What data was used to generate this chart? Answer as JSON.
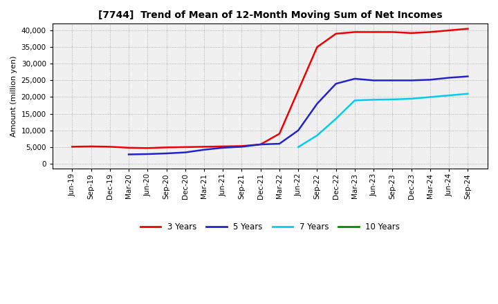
{
  "title": "[7744]  Trend of Mean of 12-Month Moving Sum of Net Incomes",
  "ylabel": "Amount (million yen)",
  "background_color": "#ffffff",
  "plot_bg_color": "#f0f0f0",
  "grid_color": "#999999",
  "x_labels": [
    "Jun-19",
    "Sep-19",
    "Dec-19",
    "Mar-20",
    "Jun-20",
    "Sep-20",
    "Dec-20",
    "Mar-21",
    "Jun-21",
    "Sep-21",
    "Dec-21",
    "Mar-22",
    "Jun-22",
    "Sep-22",
    "Dec-22",
    "Mar-23",
    "Jun-23",
    "Sep-23",
    "Dec-23",
    "Mar-24",
    "Jun-24",
    "Sep-24"
  ],
  "series": {
    "3 Years": {
      "color": "#ee0000",
      "data": [
        5100,
        5200,
        5100,
        4800,
        4700,
        4900,
        5000,
        5100,
        5200,
        5300,
        5800,
        9000,
        22000,
        35000,
        39000,
        39500,
        39500,
        39500,
        39200,
        39500,
        40000,
        40500
      ]
    },
    "5 Years": {
      "color": "#2222cc",
      "data": [
        null,
        null,
        null,
        2800,
        2900,
        3100,
        3400,
        4200,
        4800,
        5100,
        5800,
        6000,
        10000,
        18000,
        24000,
        25500,
        25000,
        25000,
        25000,
        25200,
        25800,
        26200
      ]
    },
    "7 Years": {
      "color": "#00ccee",
      "data": [
        null,
        null,
        null,
        null,
        null,
        null,
        null,
        null,
        null,
        null,
        null,
        null,
        5000,
        8500,
        13500,
        19000,
        19200,
        19300,
        19500,
        20000,
        20500,
        21000
      ]
    },
    "10 Years": {
      "color": "#008800",
      "data": [
        null,
        null,
        null,
        null,
        null,
        null,
        null,
        null,
        null,
        null,
        null,
        null,
        null,
        null,
        null,
        null,
        null,
        null,
        null,
        null,
        null,
        null
      ]
    }
  },
  "ylim": [
    -1500,
    42000
  ],
  "yticks": [
    0,
    5000,
    10000,
    15000,
    20000,
    25000,
    30000,
    35000,
    40000
  ],
  "legend_order": [
    "3 Years",
    "5 Years",
    "7 Years",
    "10 Years"
  ],
  "title_fontsize": 10,
  "ylabel_fontsize": 8,
  "tick_fontsize": 7.5,
  "legend_fontsize": 8.5
}
